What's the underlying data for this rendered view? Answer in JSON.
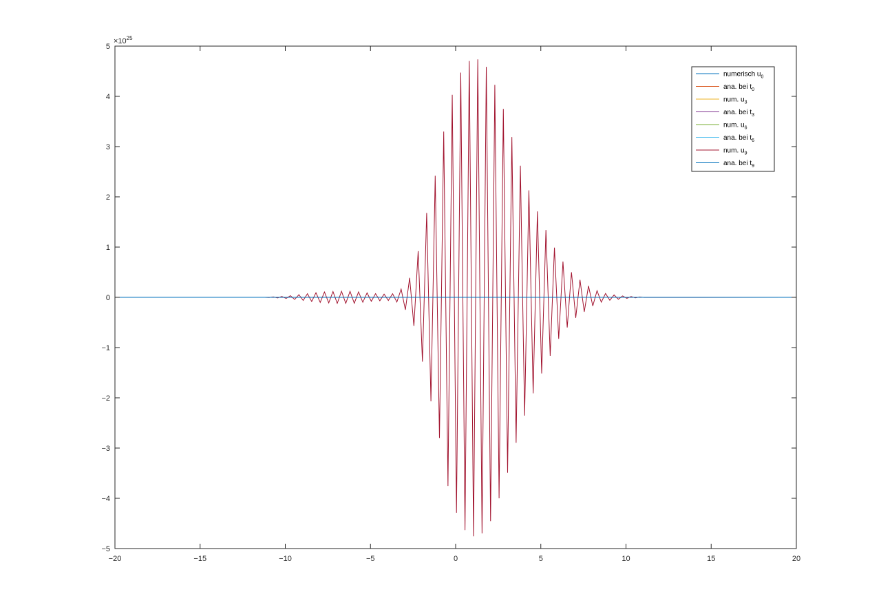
{
  "chart_data": {
    "type": "line",
    "title": "",
    "xlabel": "",
    "ylabel": "",
    "xlim": [
      -20,
      20
    ],
    "ylim": [
      -5,
      5
    ],
    "y_exponent_label": "×10",
    "y_exponent_value": "25",
    "x_ticks": [
      -20,
      -15,
      -10,
      -5,
      0,
      5,
      10,
      15,
      20
    ],
    "x_tick_labels": [
      "−20",
      "−15",
      "−10",
      "−5",
      "0",
      "5",
      "10",
      "15",
      "20"
    ],
    "y_ticks": [
      -5,
      -4,
      -3,
      -2,
      -1,
      0,
      1,
      2,
      3,
      4,
      5
    ],
    "y_tick_labels": [
      "−5",
      "−4",
      "−3",
      "−2",
      "−1",
      "0",
      "1",
      "2",
      "3",
      "4",
      "5"
    ],
    "grid": false,
    "legend_position": "top-right",
    "series": [
      {
        "name": "numerisch u",
        "name_sub": "0",
        "color": "#0072bd",
        "kind": "flat"
      },
      {
        "name": "ana. bei t",
        "name_sub": "0",
        "color": "#d95319",
        "kind": "flat"
      },
      {
        "name": "num. u",
        "name_sub": "3",
        "color": "#edb120",
        "kind": "flat"
      },
      {
        "name": "ana. bei t",
        "name_sub": "3",
        "color": "#7e2f8e",
        "kind": "flat"
      },
      {
        "name": "num. u",
        "name_sub": "6",
        "color": "#77ac30",
        "kind": "flat"
      },
      {
        "name": "ana. bei t",
        "name_sub": "6",
        "color": "#4dbeee",
        "kind": "flat"
      },
      {
        "name": "num. u",
        "name_sub": "9",
        "color": "#a2142f",
        "kind": "oscillating",
        "description": "alternating-sign oscillation between x ≈ -11 and 11, envelope peak ≈ 4.76 near x ≈ 1"
      },
      {
        "name": "ana. bei t",
        "name_sub": "9",
        "color": "#0072bd",
        "kind": "flat"
      }
    ],
    "oscillation": {
      "x_start": -11.2,
      "x_end": 11.2,
      "step": 0.25,
      "envelope": [
        [
          -11.2,
          0.0
        ],
        [
          -10.0,
          0.02
        ],
        [
          -9.0,
          0.06
        ],
        [
          -8.0,
          0.1
        ],
        [
          -7.0,
          0.12
        ],
        [
          -6.0,
          0.12
        ],
        [
          -5.0,
          0.08
        ],
        [
          -4.0,
          0.06
        ],
        [
          -3.5,
          0.08
        ],
        [
          -3.0,
          0.22
        ],
        [
          -2.5,
          0.5
        ],
        [
          -2.0,
          1.2
        ],
        [
          -1.5,
          2.0
        ],
        [
          -1.0,
          2.7
        ],
        [
          -0.5,
          3.7
        ],
        [
          0.0,
          4.25
        ],
        [
          0.5,
          4.62
        ],
        [
          1.0,
          4.76
        ],
        [
          1.5,
          4.72
        ],
        [
          2.0,
          4.5
        ],
        [
          2.5,
          4.05
        ],
        [
          3.0,
          3.55
        ],
        [
          3.5,
          2.95
        ],
        [
          4.0,
          2.4
        ],
        [
          4.5,
          1.95
        ],
        [
          5.0,
          1.55
        ],
        [
          5.5,
          1.2
        ],
        [
          6.0,
          0.85
        ],
        [
          6.5,
          0.62
        ],
        [
          7.0,
          0.42
        ],
        [
          7.5,
          0.3
        ],
        [
          8.0,
          0.18
        ],
        [
          8.5,
          0.1
        ],
        [
          9.0,
          0.06
        ],
        [
          10.0,
          0.02
        ],
        [
          11.2,
          0.0
        ]
      ]
    }
  }
}
